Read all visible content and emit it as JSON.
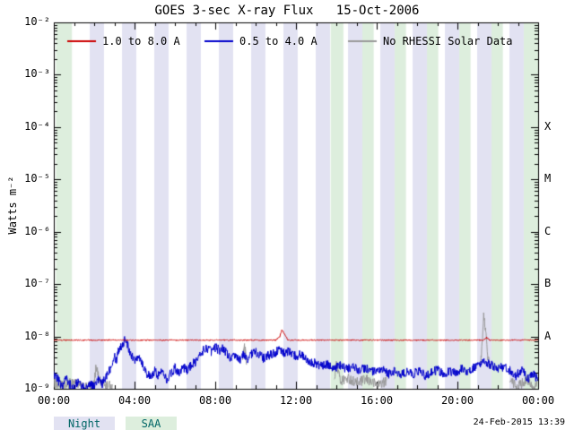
{
  "chart_data": {
    "type": "line",
    "title": "GOES 3-sec X-ray Flux   15-Oct-2006",
    "ylabel": "Watts m⁻²",
    "x_range_hours": [
      0,
      24
    ],
    "y_range": [
      1e-09,
      0.01
    ],
    "y_scale": "log",
    "grid": false,
    "x_ticks": [
      {
        "hour": 0,
        "label": "00:00"
      },
      {
        "hour": 4,
        "label": "04:00"
      },
      {
        "hour": 8,
        "label": "08:00"
      },
      {
        "hour": 12,
        "label": "12:00"
      },
      {
        "hour": 16,
        "label": "16:00"
      },
      {
        "hour": 20,
        "label": "20:00"
      },
      {
        "hour": 24,
        "label": "00:00"
      }
    ],
    "y_ticks": [
      {
        "exp": -2,
        "label": "10⁻²"
      },
      {
        "exp": -3,
        "label": "10⁻³"
      },
      {
        "exp": -4,
        "label": "10⁻⁴"
      },
      {
        "exp": -5,
        "label": "10⁻⁵"
      },
      {
        "exp": -6,
        "label": "10⁻⁶"
      },
      {
        "exp": -7,
        "label": "10⁻⁷"
      },
      {
        "exp": -8,
        "label": "10⁻⁸"
      },
      {
        "exp": -9,
        "label": "10⁻⁹"
      }
    ],
    "flare_class_labels": [
      {
        "label": "X",
        "flux": 0.0001
      },
      {
        "label": "M",
        "flux": 1e-05
      },
      {
        "label": "C",
        "flux": 1e-06
      },
      {
        "label": "B",
        "flux": 1e-07
      },
      {
        "label": "A",
        "flux": 1e-08
      }
    ],
    "legend": [
      {
        "label": "1.0 to 8.0 A",
        "color": "#cc0000"
      },
      {
        "label": "0.5 to 4.0 A",
        "color": "#0000cc"
      },
      {
        "label": "No RHESSI Solar Data",
        "color": "#999999"
      }
    ],
    "bands": {
      "night": {
        "label": "Night",
        "color": "#e2e2f2",
        "intervals": [
          [
            1.78,
            2.49
          ],
          [
            3.38,
            4.09
          ],
          [
            4.98,
            5.69
          ],
          [
            6.58,
            7.29
          ],
          [
            8.18,
            8.89
          ],
          [
            9.78,
            10.49
          ],
          [
            11.38,
            12.09
          ],
          [
            12.98,
            13.69
          ],
          [
            14.58,
            15.29
          ],
          [
            16.18,
            16.89
          ],
          [
            17.78,
            18.49
          ],
          [
            19.38,
            20.09
          ],
          [
            20.98,
            21.69
          ],
          [
            22.58,
            23.29
          ]
        ]
      },
      "saa": {
        "label": "SAA",
        "color": "#ddeedd",
        "intervals": [
          [
            0.1,
            0.9
          ],
          [
            13.72,
            14.35
          ],
          [
            15.29,
            15.85
          ],
          [
            16.89,
            17.45
          ],
          [
            18.49,
            19.05
          ],
          [
            20.09,
            20.65
          ],
          [
            21.69,
            22.25
          ],
          [
            23.29,
            24.0
          ]
        ]
      }
    },
    "series": [
      {
        "name": "No RHESSI Solar Data",
        "color": "#999999",
        "noise": 0.1,
        "segments": [
          [
            [
              0.0,
              1.3e-09
            ],
            [
              0.5,
              1.1e-09
            ],
            [
              1.0,
              1.4e-09
            ],
            [
              1.5,
              1e-09
            ],
            [
              2.0,
              1.2e-09
            ],
            [
              2.1,
              2.8e-09
            ],
            [
              2.3,
              1.3e-09
            ],
            [
              2.9,
              1.1e-09
            ]
          ],
          [
            [
              9.35,
              4e-09
            ],
            [
              9.45,
              6.5e-09
            ],
            [
              9.55,
              3.5e-09
            ]
          ],
          [
            [
              13.9,
              1.6e-09
            ],
            [
              14.0,
              3.2e-09
            ],
            [
              14.2,
              1.4e-09
            ],
            [
              14.6,
              1.6e-09
            ],
            [
              15.0,
              1.3e-09
            ],
            [
              15.5,
              1.5e-09
            ],
            [
              16.0,
              1.2e-09
            ],
            [
              16.5,
              1.4e-09
            ]
          ],
          [
            [
              21.15,
              3e-09
            ],
            [
              21.3,
              2.3e-08
            ],
            [
              21.4,
              1.5e-08
            ],
            [
              21.5,
              4e-09
            ],
            [
              21.6,
              2.8e-09
            ]
          ],
          [
            [
              22.6,
              1.4e-09
            ],
            [
              23.0,
              1.1e-09
            ],
            [
              23.4,
              1.5e-09
            ],
            [
              23.8,
              1e-09
            ],
            [
              24.0,
              1.3e-09
            ]
          ]
        ]
      },
      {
        "name": "0.5 to 4.0 A",
        "color": "#0000cc",
        "noise": 0.09,
        "segments": [
          [
            [
              0.0,
              2e-09
            ],
            [
              0.2,
              1.5e-09
            ],
            [
              0.4,
              1.1e-09
            ],
            [
              0.6,
              1.6e-09
            ],
            [
              0.8,
              1.2e-09
            ],
            [
              1.0,
              1e-09
            ],
            [
              1.2,
              1.4e-09
            ],
            [
              1.4,
              1.1e-09
            ],
            [
              1.6,
              1e-09
            ],
            [
              1.8,
              1.3e-09
            ],
            [
              2.0,
              1.1e-09
            ],
            [
              2.2,
              1.5e-09
            ],
            [
              2.4,
              1.2e-09
            ],
            [
              2.6,
              1.8e-09
            ],
            [
              2.8,
              2.5e-09
            ],
            [
              3.0,
              4.5e-09
            ],
            [
              3.1,
              3.5e-09
            ],
            [
              3.2,
              5.5e-09
            ],
            [
              3.4,
              7e-09
            ],
            [
              3.55,
              9e-09
            ],
            [
              3.7,
              6e-09
            ],
            [
              3.85,
              4.5e-09
            ],
            [
              4.0,
              3.5e-09
            ],
            [
              4.2,
              4.5e-09
            ],
            [
              4.4,
              3e-09
            ],
            [
              4.6,
              2e-09
            ],
            [
              4.8,
              1.6e-09
            ],
            [
              5.0,
              2.2e-09
            ],
            [
              5.2,
              1.8e-09
            ],
            [
              5.4,
              2.4e-09
            ],
            [
              5.6,
              1.5e-09
            ],
            [
              5.8,
              2e-09
            ],
            [
              6.0,
              2.5e-09
            ],
            [
              6.2,
              2.1e-09
            ],
            [
              6.4,
              2.6e-09
            ],
            [
              6.6,
              2.3e-09
            ],
            [
              6.8,
              2.8e-09
            ],
            [
              7.0,
              3.2e-09
            ],
            [
              7.2,
              4e-09
            ],
            [
              7.4,
              5.5e-09
            ],
            [
              7.6,
              6e-09
            ],
            [
              7.8,
              5.2e-09
            ],
            [
              8.0,
              6.2e-09
            ],
            [
              8.2,
              5.5e-09
            ],
            [
              8.4,
              6e-09
            ],
            [
              8.6,
              4.5e-09
            ],
            [
              8.8,
              3.8e-09
            ],
            [
              9.0,
              4.2e-09
            ],
            [
              9.2,
              3.6e-09
            ],
            [
              9.4,
              4.4e-09
            ],
            [
              9.6,
              3.8e-09
            ],
            [
              9.8,
              4.6e-09
            ],
            [
              10.0,
              5.2e-09
            ],
            [
              10.2,
              4.4e-09
            ],
            [
              10.4,
              3.8e-09
            ],
            [
              10.6,
              4.2e-09
            ],
            [
              10.8,
              4.6e-09
            ],
            [
              11.0,
              5e-09
            ],
            [
              11.2,
              5.5e-09
            ],
            [
              11.4,
              4.8e-09
            ],
            [
              11.6,
              5.2e-09
            ],
            [
              11.8,
              4.6e-09
            ],
            [
              12.0,
              4.2e-09
            ],
            [
              12.2,
              4.6e-09
            ],
            [
              12.4,
              4e-09
            ],
            [
              12.6,
              3.6e-09
            ],
            [
              12.8,
              3.2e-09
            ],
            [
              13.0,
              3e-09
            ],
            [
              13.3,
              2.7e-09
            ],
            [
              13.6,
              2.9e-09
            ],
            [
              13.9,
              2.5e-09
            ],
            [
              14.2,
              2.7e-09
            ],
            [
              14.5,
              2.4e-09
            ],
            [
              14.8,
              2.6e-09
            ],
            [
              15.1,
              2.3e-09
            ],
            [
              15.4,
              2.5e-09
            ],
            [
              15.7,
              2.2e-09
            ],
            [
              16.0,
              2e-09
            ],
            [
              16.3,
              2.3e-09
            ],
            [
              16.6,
              1.9e-09
            ],
            [
              16.9,
              2.2e-09
            ],
            [
              17.2,
              1.8e-09
            ],
            [
              17.5,
              2.1e-09
            ],
            [
              17.8,
              1.9e-09
            ],
            [
              18.1,
              2.2e-09
            ],
            [
              18.4,
              1.8e-09
            ],
            [
              18.7,
              2e-09
            ],
            [
              19.0,
              2.3e-09
            ],
            [
              19.3,
              1.9e-09
            ],
            [
              19.6,
              2.2e-09
            ],
            [
              19.9,
              2e-09
            ],
            [
              20.2,
              2.4e-09
            ],
            [
              20.5,
              2.1e-09
            ],
            [
              20.8,
              2.5e-09
            ],
            [
              21.1,
              2.8e-09
            ],
            [
              21.4,
              3.2e-09
            ],
            [
              21.7,
              2.8e-09
            ],
            [
              22.0,
              2.4e-09
            ],
            [
              22.3,
              2.7e-09
            ],
            [
              22.6,
              2.2e-09
            ],
            [
              22.9,
              1.8e-09
            ],
            [
              23.2,
              2.2e-09
            ],
            [
              23.5,
              1.6e-09
            ],
            [
              23.8,
              1.9e-09
            ],
            [
              24.0,
              1.4e-09
            ]
          ]
        ]
      },
      {
        "name": "1.0 to 8.0 A",
        "color": "#cc0000",
        "noise": 0.012,
        "segments": [
          [
            [
              0.0,
              8.5e-09
            ],
            [
              11.0,
              8.5e-09
            ],
            [
              11.2,
              1e-08
            ],
            [
              11.3,
              1.35e-08
            ],
            [
              11.45,
              1.1e-08
            ],
            [
              11.6,
              8.5e-09
            ],
            [
              21.3,
              8.5e-09
            ],
            [
              21.45,
              9.5e-09
            ],
            [
              21.6,
              8.5e-09
            ],
            [
              24.0,
              8.5e-09
            ]
          ]
        ]
      }
    ],
    "footer": {
      "timestamp": "24-Feb-2015 13:39"
    }
  }
}
